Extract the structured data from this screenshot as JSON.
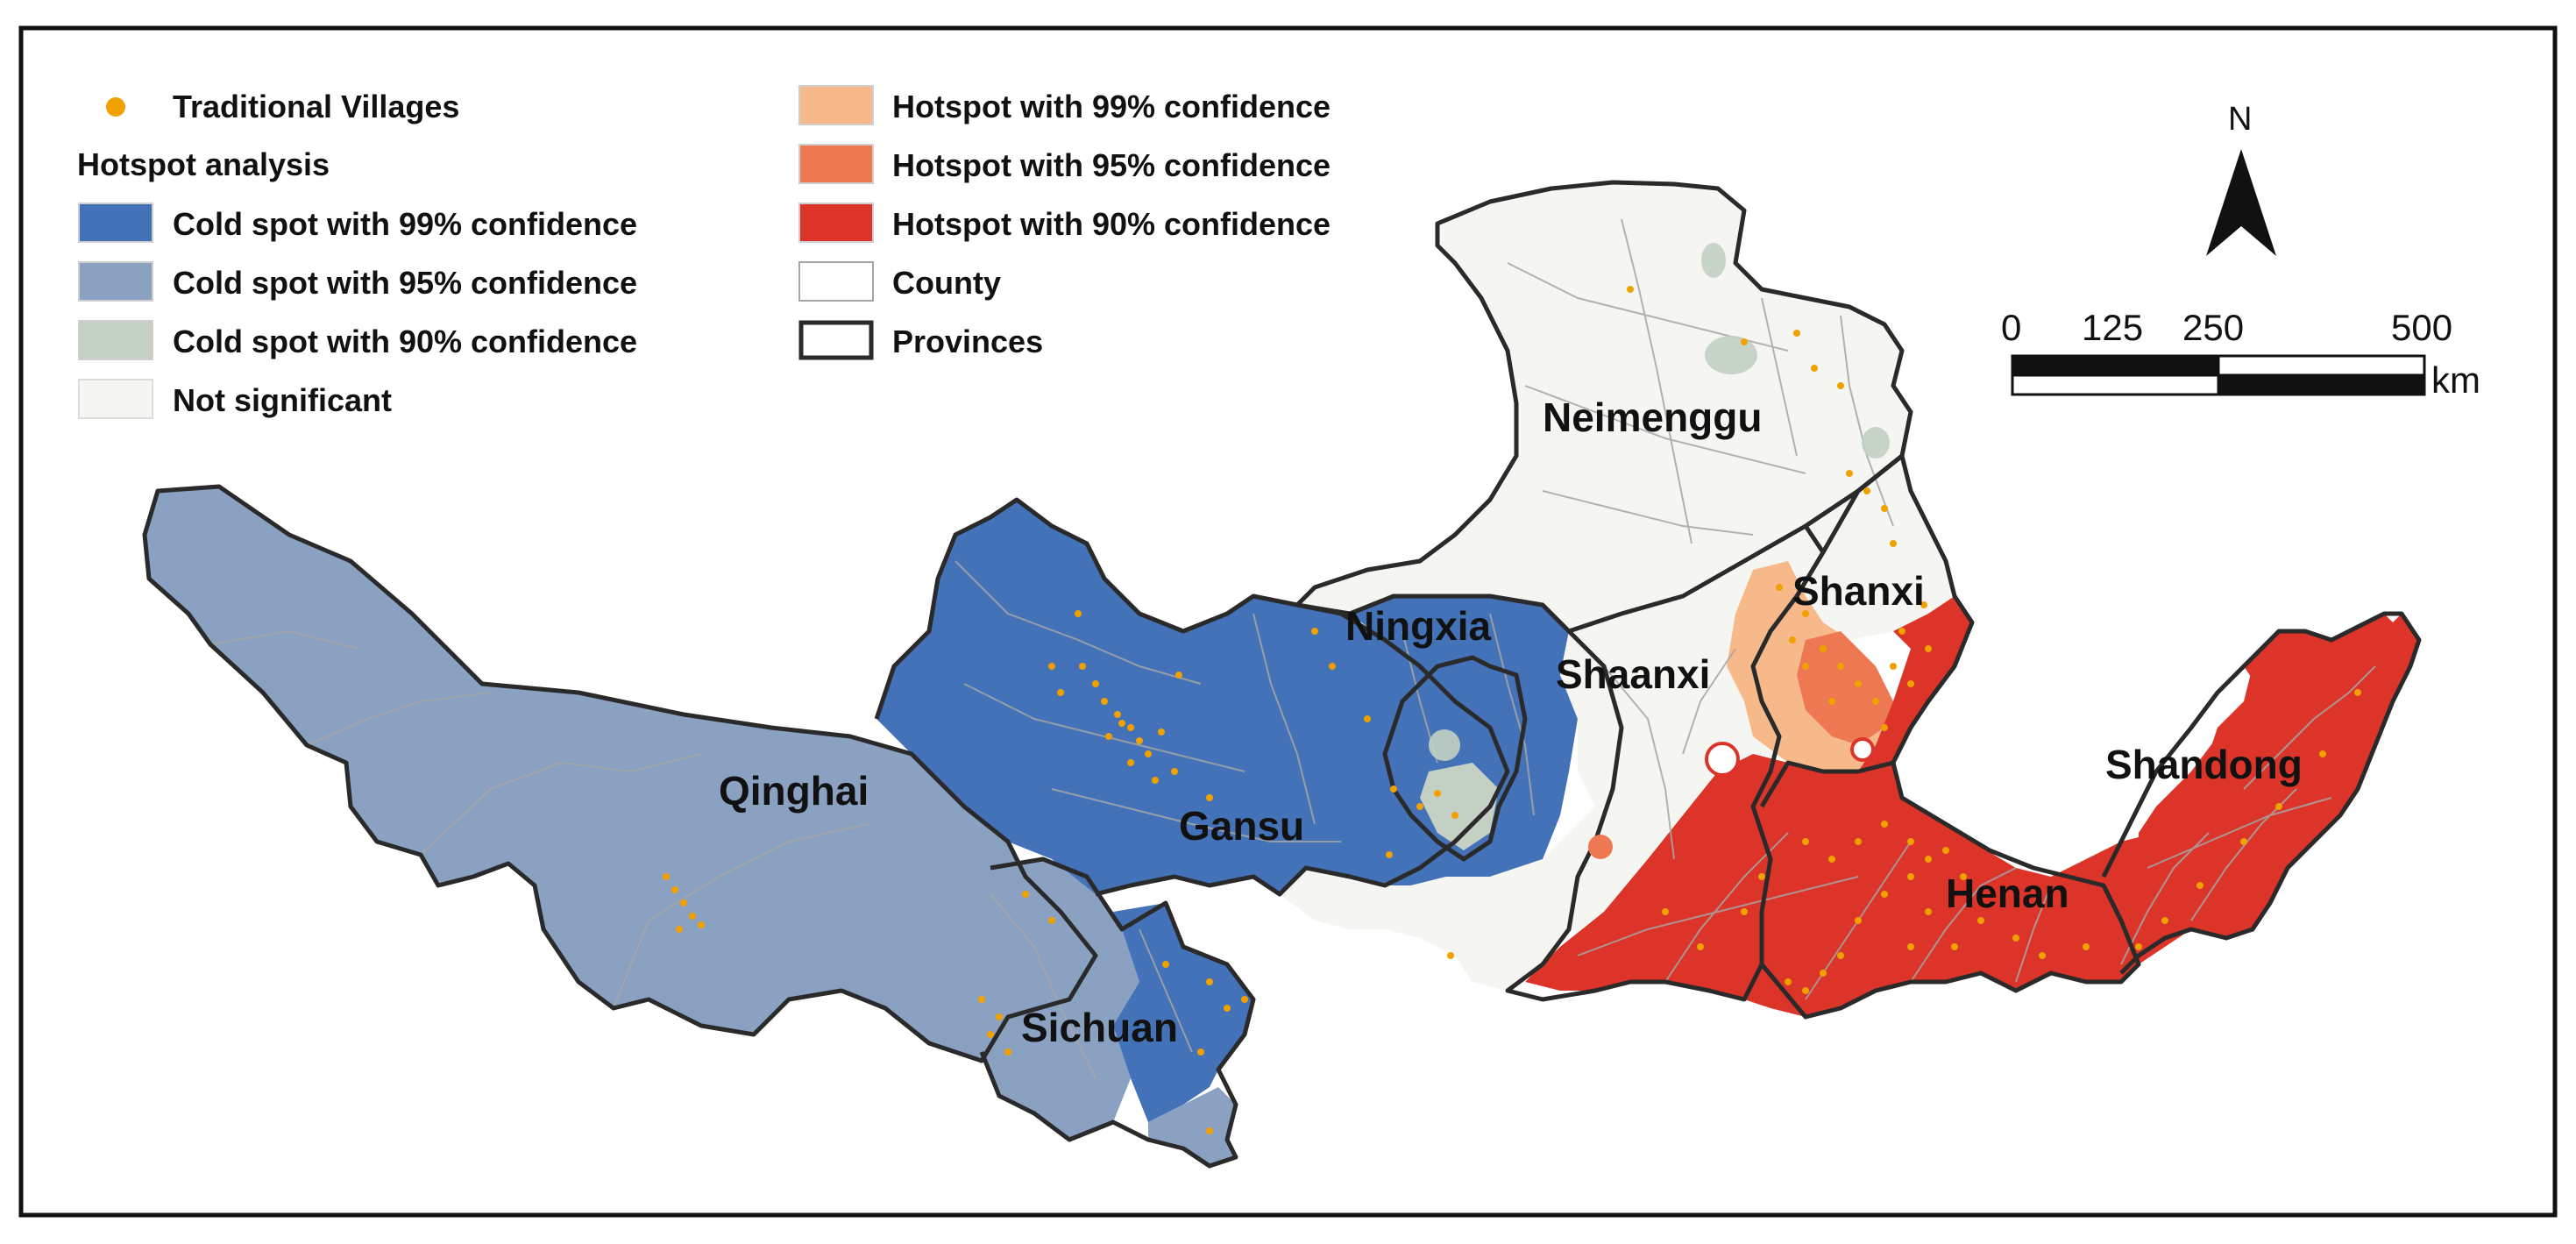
{
  "colors": {
    "cold99": "#4472b8",
    "cold95": "#8aa1c2",
    "cold90": "#c3d0c3",
    "not_significant": "#f5f6f2",
    "hot99": "#f8b98a",
    "hot95": "#ee7852",
    "hot90": "#dc3428",
    "village": "#f0a100",
    "county_line": "#a6a6a6",
    "province_line": "#2a2a2a"
  },
  "legend": {
    "villages": "Traditional Villages",
    "heading_bold": "Hotspot",
    "heading_rest": " analysis",
    "items": [
      {
        "pre": "Cold spot",
        "bold": "",
        "post": " with 99% confidence",
        "key": "cold99"
      },
      {
        "pre": "Cold ",
        "bold": "spot",
        "post": " with 95% confidence",
        "key": "cold95"
      },
      {
        "pre": "Cold ",
        "bold": "spot",
        "post": " with 90% confidence",
        "key": "cold90"
      },
      {
        "pre": "Not significant",
        "bold": "",
        "post": "",
        "key": "not_significant"
      },
      {
        "pre": "",
        "bold": "Hotspot",
        "post": " with 99% confidence",
        "key": "hot99"
      },
      {
        "pre": "",
        "bold": "Hotspot",
        "post": " with 95% confidence",
        "key": "hot95"
      },
      {
        "pre": "",
        "bold": "Hotspot",
        "post": " with 90% confidence",
        "key": "hot90"
      },
      {
        "pre": "County",
        "bold": "",
        "post": "",
        "key": "county"
      },
      {
        "pre": "Provinces",
        "bold": "",
        "post": "",
        "key": "provinces"
      }
    ]
  },
  "north_arrow": {
    "label": "N"
  },
  "scale_bar": {
    "ticks": [
      "0",
      "125",
      "250",
      "500"
    ],
    "unit": "km"
  },
  "provinces": {
    "qinghai": "Qinghai",
    "gansu": "Gansu",
    "sichuan": "Sichuan",
    "ningxia": "Ningxia",
    "neimenggu": "Neimenggu",
    "shaanxi": "Shaanxi",
    "shanxi": "Shanxi",
    "henan": "Henan",
    "shandong": "Shandong"
  }
}
